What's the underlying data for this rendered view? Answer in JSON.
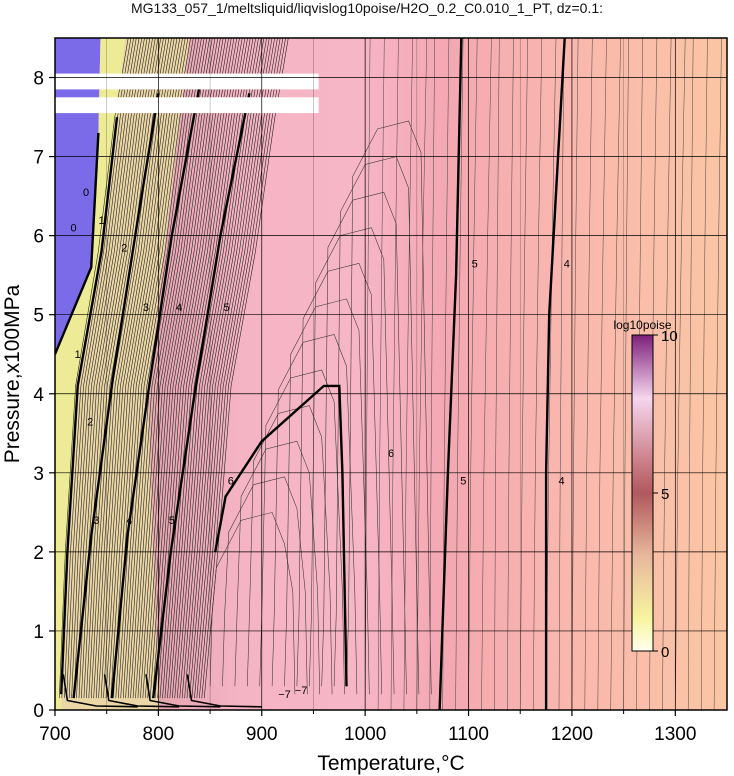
{
  "chart_data": {
    "type": "heatmap",
    "title": "MG133_057_1/meltsliquid/liqvislog10poise/H2O_0.2_C0.010_1_PT, dz=0.1:",
    "xlabel": "Temperature,°C",
    "ylabel": "Pressure,x100MPa",
    "xlim": [
      700,
      1350
    ],
    "ylim": [
      0,
      8.5
    ],
    "x_ticks": [
      700,
      800,
      900,
      1000,
      1100,
      1200,
      1300
    ],
    "y_ticks": [
      0,
      1,
      2,
      3,
      4,
      5,
      6,
      7,
      8
    ],
    "grid": true,
    "contour_interval": 0.1,
    "major_contours": [
      {
        "level": "1",
        "points": [
          [
            700,
            4.5
          ],
          [
            735,
            5.6
          ],
          [
            742,
            7.3
          ]
        ]
      },
      {
        "level": "2",
        "points": [
          [
            706,
            0.2
          ],
          [
            712,
            2.0
          ],
          [
            722,
            4.1
          ],
          [
            745,
            5.8
          ],
          [
            760,
            7.5
          ]
        ]
      },
      {
        "level": "3",
        "points": [
          [
            718,
            0.15
          ],
          [
            735,
            2.2
          ],
          [
            756,
            4.2
          ],
          [
            780,
            6.2
          ],
          [
            800,
            7.8
          ]
        ]
      },
      {
        "level": "4",
        "points": [
          [
            755,
            0.15
          ],
          [
            770,
            2.2
          ],
          [
            790,
            4.0
          ],
          [
            813,
            6.0
          ],
          [
            840,
            7.9
          ]
        ]
      },
      {
        "level": "5",
        "points": [
          [
            795,
            0.15
          ],
          [
            812,
            2.0
          ],
          [
            835,
            4.0
          ],
          [
            860,
            6.0
          ],
          [
            888,
            7.8
          ]
        ]
      },
      {
        "level": "6",
        "points": [
          [
            855,
            2.0
          ],
          [
            865,
            2.7
          ],
          [
            900,
            3.4
          ],
          [
            960,
            4.1
          ],
          [
            975,
            4.1
          ],
          [
            978,
            3.0
          ],
          [
            982,
            0.3
          ]
        ]
      },
      {
        "level": "5",
        "points": [
          [
            1072,
            0
          ],
          [
            1080,
            3.0
          ],
          [
            1088,
            5.5
          ],
          [
            1093,
            8.5
          ]
        ]
      },
      {
        "level": "4",
        "points": [
          [
            1175,
            0
          ],
          [
            1175,
            3.0
          ],
          [
            1178,
            5.0
          ],
          [
            1193,
            8.5
          ]
        ]
      }
    ],
    "contour_labels": [
      {
        "text": "0",
        "x": 718,
        "y": 6.05
      },
      {
        "text": "1",
        "x": 722,
        "y": 4.45
      },
      {
        "text": "2",
        "x": 734,
        "y": 3.6
      },
      {
        "text": "3",
        "x": 740,
        "y": 2.35
      },
      {
        "text": "4",
        "x": 772,
        "y": 2.35
      },
      {
        "text": "5",
        "x": 813,
        "y": 2.35
      },
      {
        "text": "0",
        "x": 730,
        "y": 6.5
      },
      {
        "text": "1",
        "x": 745,
        "y": 6.15
      },
      {
        "text": "2",
        "x": 767,
        "y": 5.8
      },
      {
        "text": "3",
        "x": 788,
        "y": 5.05
      },
      {
        "text": "4",
        "x": 820,
        "y": 5.05
      },
      {
        "text": "5",
        "x": 866,
        "y": 5.05
      },
      {
        "text": "6",
        "x": 870,
        "y": 2.85
      },
      {
        "text": "6",
        "x": 1025,
        "y": 3.2
      },
      {
        "text": "5",
        "x": 1095,
        "y": 2.85
      },
      {
        "text": "5",
        "x": 1106,
        "y": 5.6
      },
      {
        "text": "4",
        "x": 1190,
        "y": 2.85
      },
      {
        "text": "4",
        "x": 1195,
        "y": 5.6
      },
      {
        "text": "−7",
        "x": 922,
        "y": 0.15
      },
      {
        "text": "−7",
        "x": 938,
        "y": 0.2
      }
    ],
    "masked_rows": [
      [
        7.85,
        8.05
      ],
      [
        7.55,
        7.75
      ]
    ],
    "colorbar": {
      "title": "log10poise",
      "min": 0,
      "max": 10,
      "ticks": [
        0,
        5,
        10
      ]
    }
  }
}
